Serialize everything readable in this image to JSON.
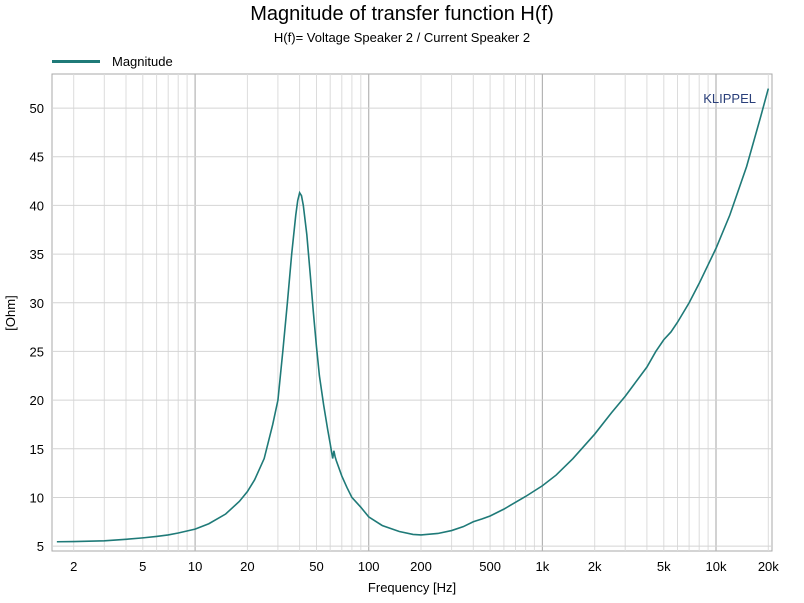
{
  "chart_data": {
    "type": "line",
    "title": "Magnitude of transfer function H(f)",
    "subtitle": "H(f)= Voltage Speaker 2 / Current Speaker 2",
    "xlabel": "Frequency [Hz]",
    "ylabel": "[Ohm]",
    "xscale": "log",
    "xlim": [
      1.5,
      21000
    ],
    "ylim": [
      4.5,
      53.5
    ],
    "grid": true,
    "legend_position": "top-left",
    "annotation": "KLIPPEL",
    "x_ticks": [
      {
        "value": 2,
        "label": "2"
      },
      {
        "value": 5,
        "label": "5"
      },
      {
        "value": 10,
        "label": "10"
      },
      {
        "value": 20,
        "label": "20"
      },
      {
        "value": 50,
        "label": "50"
      },
      {
        "value": 100,
        "label": "100"
      },
      {
        "value": 200,
        "label": "200"
      },
      {
        "value": 500,
        "label": "500"
      },
      {
        "value": 1000,
        "label": "1k"
      },
      {
        "value": 2000,
        "label": "2k"
      },
      {
        "value": 5000,
        "label": "5k"
      },
      {
        "value": 10000,
        "label": "10k"
      },
      {
        "value": 20000,
        "label": "20k"
      }
    ],
    "y_ticks": [
      5,
      10,
      15,
      20,
      25,
      30,
      35,
      40,
      45,
      50
    ],
    "series": [
      {
        "name": "Magnitude",
        "color": "#1f7a78",
        "points": [
          [
            1.6,
            5.45
          ],
          [
            2,
            5.47
          ],
          [
            3,
            5.55
          ],
          [
            4,
            5.7
          ],
          [
            5,
            5.85
          ],
          [
            6,
            6.0
          ],
          [
            7,
            6.15
          ],
          [
            8,
            6.35
          ],
          [
            10,
            6.75
          ],
          [
            12,
            7.3
          ],
          [
            15,
            8.3
          ],
          [
            18,
            9.6
          ],
          [
            20,
            10.6
          ],
          [
            22,
            11.8
          ],
          [
            25,
            14.0
          ],
          [
            28,
            17.5
          ],
          [
            30,
            20.0
          ],
          [
            32,
            25.0
          ],
          [
            34,
            30.0
          ],
          [
            36,
            35.0
          ],
          [
            38,
            39.0
          ],
          [
            39,
            40.5
          ],
          [
            40,
            41.3
          ],
          [
            41,
            41.0
          ],
          [
            42,
            40.0
          ],
          [
            44,
            37.0
          ],
          [
            46,
            33.0
          ],
          [
            48,
            29.0
          ],
          [
            50,
            25.5
          ],
          [
            52,
            22.5
          ],
          [
            55,
            19.5
          ],
          [
            58,
            17.0
          ],
          [
            60,
            15.5
          ],
          [
            62,
            14.0
          ],
          [
            63,
            14.8
          ],
          [
            64,
            14.2
          ],
          [
            65,
            13.8
          ],
          [
            70,
            12.2
          ],
          [
            75,
            11.0
          ],
          [
            80,
            10.0
          ],
          [
            90,
            9.0
          ],
          [
            100,
            8.0
          ],
          [
            120,
            7.1
          ],
          [
            150,
            6.5
          ],
          [
            180,
            6.2
          ],
          [
            200,
            6.15
          ],
          [
            250,
            6.3
          ],
          [
            300,
            6.6
          ],
          [
            350,
            7.0
          ],
          [
            400,
            7.5
          ],
          [
            450,
            7.8
          ],
          [
            500,
            8.1
          ],
          [
            600,
            8.8
          ],
          [
            700,
            9.5
          ],
          [
            800,
            10.1
          ],
          [
            1000,
            11.2
          ],
          [
            1200,
            12.3
          ],
          [
            1500,
            14.0
          ],
          [
            2000,
            16.5
          ],
          [
            2500,
            18.7
          ],
          [
            3000,
            20.4
          ],
          [
            4000,
            23.4
          ],
          [
            4500,
            25.0
          ],
          [
            5000,
            26.2
          ],
          [
            5500,
            27.0
          ],
          [
            6000,
            28.0
          ],
          [
            7000,
            30.0
          ],
          [
            8000,
            32.0
          ],
          [
            10000,
            35.6
          ],
          [
            12000,
            39.0
          ],
          [
            15000,
            44.0
          ],
          [
            18000,
            49.0
          ],
          [
            20000,
            52.0
          ]
        ]
      }
    ]
  }
}
